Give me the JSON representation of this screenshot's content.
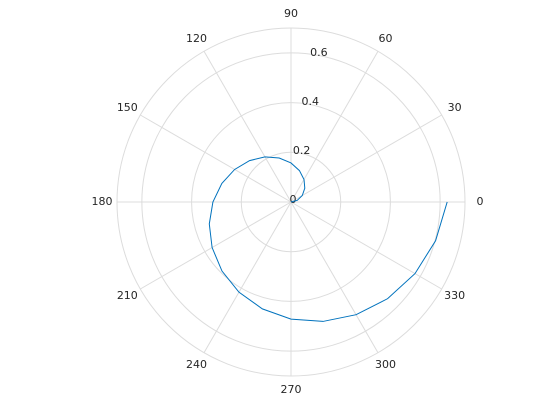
{
  "chart_data": {
    "type": "polar",
    "x": [
      0,
      0.2618,
      0.5236,
      0.7854,
      1.0472,
      1.309,
      1.5708,
      1.8326,
      2.0944,
      2.3562,
      2.618,
      2.8798,
      3.1416,
      3.4034,
      3.6652,
      3.927,
      4.1888,
      4.4506,
      4.7124,
      4.9742,
      5.236,
      5.4978,
      5.7596,
      6.0214,
      6.2832
    ],
    "values": [
      0,
      0.0262,
      0.0524,
      0.0785,
      0.1047,
      0.1309,
      0.1571,
      0.1833,
      0.2094,
      0.2356,
      0.2618,
      0.288,
      0.3142,
      0.3403,
      0.3665,
      0.3927,
      0.4189,
      0.4451,
      0.4712,
      0.4974,
      0.5236,
      0.5498,
      0.576,
      0.6021,
      0.6283
    ],
    "color": "#0072bd",
    "rlim": [
      0,
      0.7
    ],
    "rticks": [
      0,
      0.2,
      0.4,
      0.6
    ],
    "thetaticks": [
      0,
      30,
      60,
      90,
      120,
      150,
      180,
      210,
      240,
      270,
      300,
      330
    ],
    "grid": true
  }
}
